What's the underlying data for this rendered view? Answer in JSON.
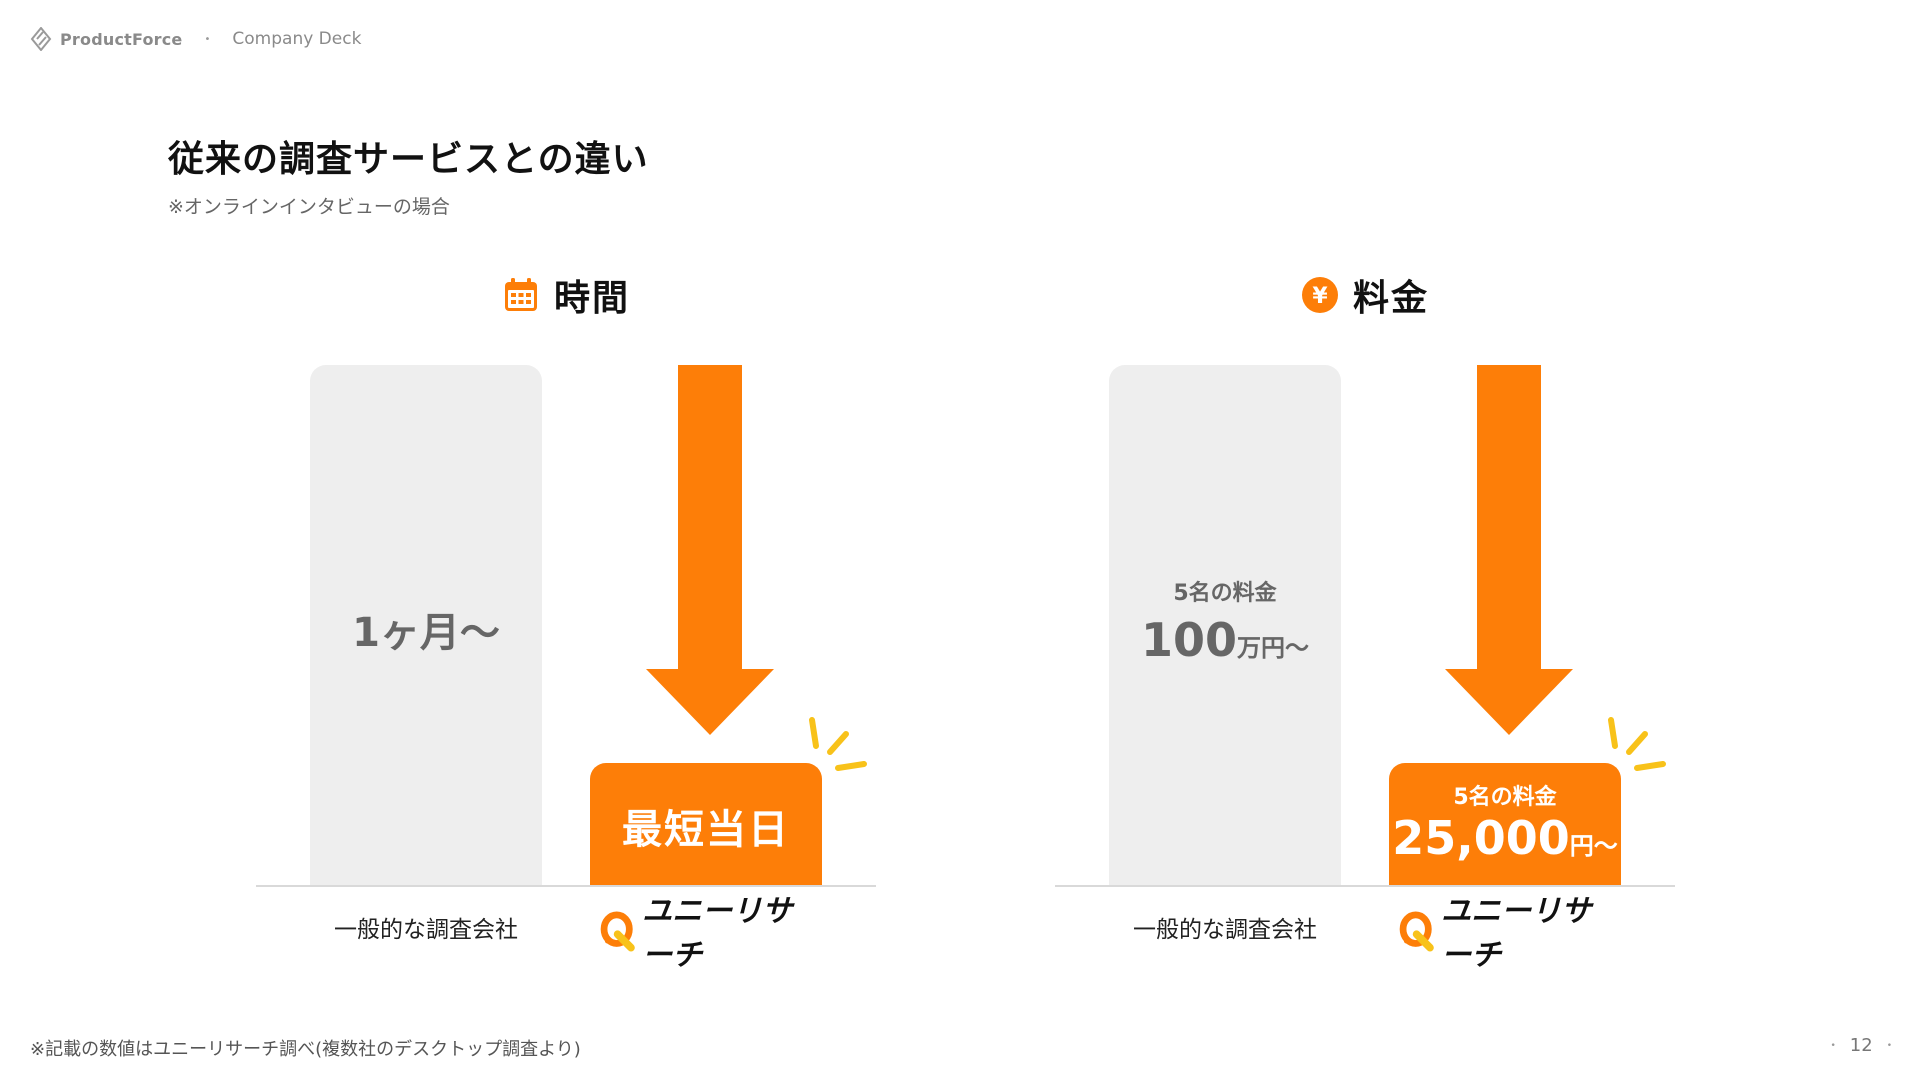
{
  "header": {
    "brand": "ProductForce",
    "separator": "•",
    "crumb": "Company Deck"
  },
  "slide": {
    "title": "従来の調査サービスとの違い",
    "subtitle": "※オンラインインタビューの場合"
  },
  "panels": {
    "time": {
      "title": "時間",
      "icon": "calendar-icon",
      "general_value": "1ヶ月〜",
      "unii_value": "最短当日",
      "general_label": "一般的な調査会社",
      "unii_label": "ユニーリサーチ"
    },
    "price": {
      "title": "料金",
      "icon": "yen-icon",
      "icon_glyph": "¥",
      "general_caption": "5名の料金",
      "general_number": "100",
      "general_unit": "万円〜",
      "unii_caption": "5名の料金",
      "unii_number": "25,000",
      "unii_unit": "円〜",
      "general_label": "一般的な調査会社",
      "unii_label": "ユニーリサーチ"
    }
  },
  "footer": {
    "note": "※記載の数値はユニーリサーチ調べ(複数社のデスクトップ調査より)",
    "page_number": "12",
    "dot": "•"
  },
  "colors": {
    "accent": "#fd7e08",
    "spark": "#f8c21a",
    "bar_gray": "#eeeeee",
    "text_gray": "#666666"
  }
}
